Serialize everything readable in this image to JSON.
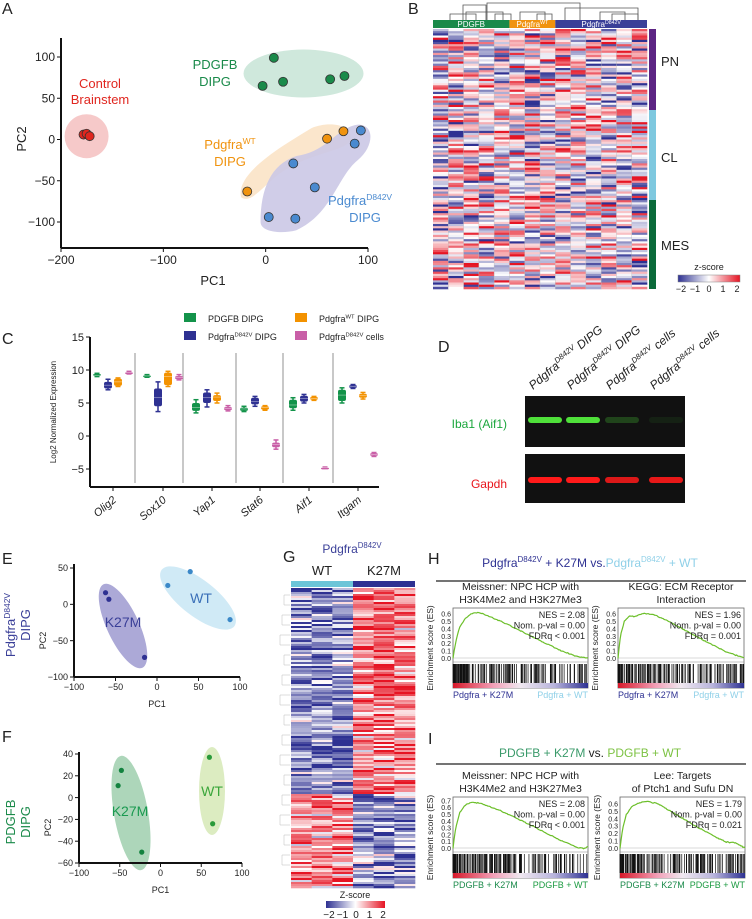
{
  "panel_labels": [
    "A",
    "B",
    "C",
    "D",
    "E",
    "F",
    "G",
    "H",
    "I"
  ],
  "colors": {
    "pdgfb": "#1a8a4a",
    "wt": "#f0930f",
    "d842v": "#4a8ad0",
    "control": "#e0261f",
    "navy": "#2e3192",
    "lightblue": "#8fd0e8",
    "pink": "#c95fa7",
    "green_light": "#7cc242"
  },
  "chart_data": [
    {
      "id": "A",
      "type": "scatter",
      "xlabel": "PC1",
      "ylabel": "PC2",
      "xlim": [
        -200,
        100
      ],
      "ylim": [
        -125,
        125
      ],
      "xticks": [
        -200,
        -100,
        0,
        100
      ],
      "yticks": [
        -100,
        -50,
        0,
        50,
        100
      ],
      "xtick_labels": [
        "−200",
        "−100",
        "0",
        "100"
      ],
      "ytick_labels": [
        "−100",
        "−50",
        "0",
        "50",
        "100"
      ],
      "series": [
        {
          "name": "Control",
          "name2": "Brainstem",
          "color": "#e0261f",
          "points": [
            [
              -178,
              6
            ],
            [
              -175,
              7
            ],
            [
              -172,
              4
            ]
          ]
        },
        {
          "name": "PDGFB",
          "name2": "DIPG",
          "color": "#1a8a4a",
          "points": [
            [
              8,
              99
            ],
            [
              -3,
              65
            ],
            [
              17,
              70
            ],
            [
              63,
              73
            ],
            [
              77,
              77
            ]
          ]
        },
        {
          "name": "Pdgfra",
          "sup": "WT",
          "name2": "DIPG",
          "color": "#f0930f",
          "points": [
            [
              -18,
              -63
            ],
            [
              60,
              1
            ],
            [
              76,
              10
            ]
          ]
        },
        {
          "name": "Pdgfra",
          "sup": "D842V",
          "name2": "DIPG",
          "color": "#4a8ad0",
          "points": [
            [
              27,
              -29
            ],
            [
              48,
              -58
            ],
            [
              3,
              -94
            ],
            [
              29,
              -96
            ],
            [
              87,
              -5
            ],
            [
              93,
              11
            ]
          ]
        }
      ]
    },
    {
      "id": "B",
      "type": "heatmap",
      "column_groups": [
        {
          "name": "PDGFB",
          "sup": "",
          "n": 5,
          "color": "#1a8a4a"
        },
        {
          "name": "Pdgfra",
          "sup": "WT",
          "n": 3,
          "color": "#f0930f"
        },
        {
          "name": "Pdgfra",
          "sup": "D842V",
          "n": 6,
          "color": "#3a3f98"
        }
      ],
      "row_groups": [
        {
          "name": "PN",
          "color": "#5c2483"
        },
        {
          "name": "CL",
          "color": "#7ec8df"
        },
        {
          "name": "MES",
          "color": "#0b6a3a"
        }
      ],
      "colorbar": {
        "label": "z-score",
        "ticks": [
          "−2",
          "−1",
          "0",
          "1",
          "2"
        ],
        "range": [
          -2,
          2
        ]
      }
    },
    {
      "id": "C",
      "type": "box",
      "ylabel": "Log2 Normalized Expression",
      "ylim": [
        -7.5,
        15
      ],
      "yticks": [
        -5,
        0,
        5,
        10,
        15
      ],
      "ytick_labels": [
        "−5",
        "0",
        "5",
        "10",
        "15"
      ],
      "categories": [
        "Olig2",
        "Sox10",
        "Yap1",
        "Stat6",
        "Aif1",
        "Itgam"
      ],
      "series": [
        {
          "name": "PDGFB DIPG",
          "label": "PDGFB DIPG",
          "color": "#13934a",
          "values": [
            [
              9.0,
              9.1,
              9.2,
              9.4,
              9.5
            ],
            [
              8.9,
              9.0,
              9.1,
              9.2,
              9.3
            ],
            [
              3.5,
              3.8,
              4.3,
              5.0,
              5.5
            ],
            [
              3.7,
              3.8,
              4.1,
              4.3,
              4.5
            ],
            [
              3.9,
              4.2,
              4.7,
              5.5,
              5.8
            ],
            [
              5.0,
              5.3,
              6.2,
              7.0,
              7.3
            ]
          ]
        },
        {
          "name": "PdgfraD842V DIPG",
          "label": "Pdgfra",
          "sup": "D842V",
          "label2": " DIPG",
          "color": "#2e3192",
          "values": [
            [
              7.0,
              7.2,
              7.7,
              8.2,
              8.6
            ],
            [
              3.7,
              4.5,
              5.8,
              7.2,
              8.2
            ],
            [
              4.4,
              5.0,
              5.8,
              6.6,
              7.0
            ],
            [
              4.5,
              4.8,
              5.2,
              5.8,
              6.0
            ],
            [
              5.0,
              5.2,
              5.7,
              6.1,
              6.3
            ],
            [
              7.2,
              7.3,
              7.5,
              7.7,
              7.8
            ]
          ]
        },
        {
          "name": "PdgfraWT DIPG",
          "label": "Pdgfra",
          "sup": "WT",
          "label2": " DIPG",
          "color": "#f39200",
          "values": [
            [
              7.5,
              7.6,
              8.2,
              8.7,
              8.8
            ],
            [
              7.5,
              7.7,
              9.0,
              9.6,
              9.8
            ],
            [
              5.0,
              5.3,
              5.9,
              6.2,
              6.5
            ],
            [
              3.9,
              4.0,
              4.3,
              4.5,
              4.6
            ],
            [
              5.4,
              5.5,
              5.7,
              5.9,
              6.0
            ],
            [
              5.6,
              5.8,
              6.1,
              6.4,
              6.6
            ]
          ]
        },
        {
          "name": "PdgfraD842V cells",
          "label": "Pdgfra",
          "sup": "D842V",
          "label2": " cells",
          "color": "#c95fa7",
          "values": [
            [
              9.4,
              9.5,
              9.6,
              9.7,
              9.8
            ],
            [
              8.5,
              8.6,
              8.9,
              9.1,
              9.3
            ],
            [
              3.8,
              3.9,
              4.2,
              4.4,
              4.6
            ],
            [
              -2.0,
              -1.7,
              -1.3,
              -1.0,
              -0.6
            ],
            [
              -4.9,
              -4.85,
              -4.8,
              -4.75,
              -4.7
            ],
            [
              -3.1,
              -3.0,
              -2.8,
              -2.6,
              -2.5
            ]
          ]
        }
      ]
    },
    {
      "id": "D",
      "type": "western_blot",
      "lanes": [
        {
          "name": "Pdgfra",
          "sup": "D842V",
          "suffix": " DIPG"
        },
        {
          "name": "Pdgfra",
          "sup": "D842V",
          "suffix": " DIPG"
        },
        {
          "name": "Pdgfra",
          "sup": "D842V",
          "suffix": " cells"
        },
        {
          "name": "Pdgfra",
          "sup": "D842V",
          "suffix": " cells"
        }
      ],
      "rows": [
        {
          "name": "Iba1 (Aif1)",
          "color": "#1aa63c",
          "band_color": "#4fe03a",
          "intensity": [
            1.0,
            1.0,
            0.25,
            0.08
          ]
        },
        {
          "name": "Gapdh",
          "color": "#e8141b",
          "band_color": "#ff1a1a",
          "intensity": [
            1.0,
            1.0,
            0.85,
            0.9
          ]
        }
      ]
    },
    {
      "id": "E",
      "type": "scatter",
      "side_label": {
        "name": "Pdgfra",
        "sup": "D842V",
        "line2": "DIPG",
        "color": "#3a3f98"
      },
      "xlabel": "PC1",
      "ylabel": "PC2",
      "xlim": [
        -100,
        100
      ],
      "ylim": [
        -100,
        50
      ],
      "xticks": [
        -100,
        -50,
        0,
        50,
        100
      ],
      "yticks": [
        -100,
        -50,
        0,
        50
      ],
      "xtick_labels": [
        "−100",
        "−50",
        "0",
        "50",
        "100"
      ],
      "ytick_labels": [
        "−100",
        "−50",
        "0",
        "50"
      ],
      "series": [
        {
          "name": "K27M",
          "color": "#2e3192",
          "fill": "#9d9ad0",
          "text_color": "#3a3f98",
          "points": [
            [
              -62,
              16
            ],
            [
              -58,
              7
            ],
            [
              -15,
              -73
            ]
          ]
        },
        {
          "name": "WT",
          "color": "#3a88c8",
          "fill": "#c8e6f5",
          "text_color": "#3a6fb8",
          "points": [
            [
              13,
              26
            ],
            [
              40,
              45
            ],
            [
              88,
              -21
            ]
          ]
        }
      ]
    },
    {
      "id": "F",
      "type": "scatter",
      "side_label": {
        "name": "PDGFB",
        "line2": "DIPG",
        "color": "#1a8a4a"
      },
      "xlabel": "PC1",
      "ylabel": "PC2",
      "xlim": [
        -100,
        100
      ],
      "ylim": [
        -60,
        40
      ],
      "xticks": [
        -100,
        -50,
        0,
        50,
        100
      ],
      "yticks": [
        -60,
        -40,
        -20,
        0,
        20,
        40
      ],
      "xtick_labels": [
        "−100",
        "−50",
        "0",
        "50",
        "100"
      ],
      "ytick_labels": [
        "−60",
        "−40",
        "−20",
        "0",
        "20",
        "40"
      ],
      "series": [
        {
          "name": "K27M",
          "color": "#13823f",
          "fill": "#9fcfae",
          "text_color": "#1a9a50",
          "points": [
            [
              -48,
              25
            ],
            [
              -52,
              11
            ],
            [
              -23,
              -50
            ]
          ]
        },
        {
          "name": "WT",
          "color": "#2a9a3a",
          "fill": "#d6e9b6",
          "text_color": "#3aa63a",
          "points": [
            [
              60,
              37
            ],
            [
              64,
              -24
            ]
          ]
        }
      ]
    },
    {
      "id": "G",
      "type": "heatmap",
      "title": {
        "name": "Pdgfra",
        "sup": "D842V"
      },
      "column_groups": [
        {
          "name": "WT",
          "n": 3,
          "color": "#6cc5d8"
        },
        {
          "name": "K27M",
          "n": 3,
          "color": "#2e3192"
        }
      ],
      "colorbar": {
        "label": "Z-score",
        "ticks": [
          "−2",
          "−1",
          "0",
          "1",
          "2"
        ],
        "range": [
          -2,
          2
        ]
      }
    },
    {
      "id": "H",
      "type": "gsea",
      "title": [
        {
          "name": "Pdgfra",
          "sup": "D842V",
          "suffix": " + K27M vs.",
          "color": "#2e3192"
        },
        {
          "name": "Pdgfra",
          "sup": "D842V",
          "suffix": " + WT",
          "color": "#8fd0e8"
        }
      ],
      "ylabel": "Enrichment score (ES)",
      "plots": [
        {
          "title": [
            "Meissner: NPC HCP with",
            "H3K4Me2 and H3K27Me3"
          ],
          "stats": [
            "NES = 2.08",
            "Nom. p-val = 0.00",
            "FDRq < 0.001"
          ],
          "yticks": [
            "0.0",
            "0.1",
            "0.2",
            "0.3",
            "0.4",
            "0.5",
            "0.6"
          ],
          "ymax": 0.65,
          "curve": [
            [
              0,
              0
            ],
            [
              0.02,
              0.22
            ],
            [
              0.05,
              0.42
            ],
            [
              0.09,
              0.53
            ],
            [
              0.13,
              0.59
            ],
            [
              0.17,
              0.615
            ],
            [
              0.22,
              0.6
            ],
            [
              0.35,
              0.5
            ],
            [
              0.5,
              0.37
            ],
            [
              0.65,
              0.23
            ],
            [
              0.8,
              0.1
            ],
            [
              0.92,
              0.02
            ],
            [
              1,
              0
            ]
          ],
          "left_label": "Pdgfra + K27M",
          "right_label": "Pdgfra + WT",
          "left_color": "#2e3192",
          "right_color": "#8fd0e8"
        },
        {
          "title": [
            "KEGG: ECM Receptor",
            "Interaction"
          ],
          "stats": [
            "NES = 1.96",
            "Nom. p-val = 0.00",
            "FDRq = 0.001"
          ],
          "yticks": [
            "0.0",
            "0.1",
            "0.2",
            "0.3",
            "0.4",
            "0.5",
            "0.6"
          ],
          "ymax": 0.65,
          "curve": [
            [
              0,
              0
            ],
            [
              0.02,
              0.3
            ],
            [
              0.05,
              0.5
            ],
            [
              0.09,
              0.57
            ],
            [
              0.13,
              0.56
            ],
            [
              0.2,
              0.6
            ],
            [
              0.28,
              0.59
            ],
            [
              0.4,
              0.5
            ],
            [
              0.55,
              0.36
            ],
            [
              0.7,
              0.22
            ],
            [
              0.85,
              0.09
            ],
            [
              0.95,
              0.03
            ],
            [
              1,
              0
            ]
          ],
          "left_label": "Pdgfra + K27M",
          "right_label": "Pdgfra + WT",
          "left_color": "#2e3192",
          "right_color": "#8fd0e8"
        }
      ]
    },
    {
      "id": "I",
      "type": "gsea",
      "title": [
        {
          "name": "PDGFB + K27M",
          "color": "#3a9a6a"
        },
        {
          "name": " vs. ",
          "color": "#222222"
        },
        {
          "name": "PDGFB + WT",
          "color": "#7cc242"
        }
      ],
      "ylabel": "Enrichment score (ES)",
      "plots": [
        {
          "title": [
            "Meissner: NPC HCP with",
            "H3K4Me2 and H3K27Me3"
          ],
          "stats": [
            "NES = 2.08",
            "Nom. p-val = 0.00",
            "FDRq < 0.001"
          ],
          "yticks": [
            "0.0",
            "0.1",
            "0.2",
            "0.3",
            "0.4",
            "0.5",
            "0.6",
            "0.7"
          ],
          "ymax": 0.72,
          "curve": [
            [
              0,
              0
            ],
            [
              0.02,
              0.3
            ],
            [
              0.05,
              0.52
            ],
            [
              0.09,
              0.63
            ],
            [
              0.14,
              0.67
            ],
            [
              0.2,
              0.66
            ],
            [
              0.35,
              0.55
            ],
            [
              0.5,
              0.41
            ],
            [
              0.65,
              0.26
            ],
            [
              0.8,
              0.11
            ],
            [
              0.92,
              0.01
            ],
            [
              0.97,
              -0.01
            ],
            [
              1,
              0.02
            ]
          ],
          "left_label": "PDGFB + K27M",
          "right_label": "PDGFB + WT",
          "left_color": "#1a8a4a",
          "right_color": "#1a9a40"
        },
        {
          "title": [
            "Lee: Targets",
            "of Ptch1 and Sufu DN"
          ],
          "stats": [
            "NES = 1.79",
            "Nom. p-val = 0.00",
            "FDRq = 0.021"
          ],
          "yticks": [
            "0.0",
            "0.1",
            "0.2",
            "0.3",
            "0.4",
            "0.5",
            "0.6"
          ],
          "ymax": 0.66,
          "curve": [
            [
              0,
              0
            ],
            [
              0.02,
              0.25
            ],
            [
              0.05,
              0.45
            ],
            [
              0.09,
              0.55
            ],
            [
              0.14,
              0.6
            ],
            [
              0.2,
              0.63
            ],
            [
              0.3,
              0.6
            ],
            [
              0.45,
              0.45
            ],
            [
              0.6,
              0.3
            ],
            [
              0.75,
              0.16
            ],
            [
              0.85,
              0.08
            ],
            [
              0.92,
              0.07
            ],
            [
              1,
              0
            ]
          ],
          "left_label": "PDGFB + K27M",
          "right_label": "PDGFB + WT",
          "left_color": "#1a8a4a",
          "right_color": "#1a9a40"
        }
      ]
    }
  ]
}
